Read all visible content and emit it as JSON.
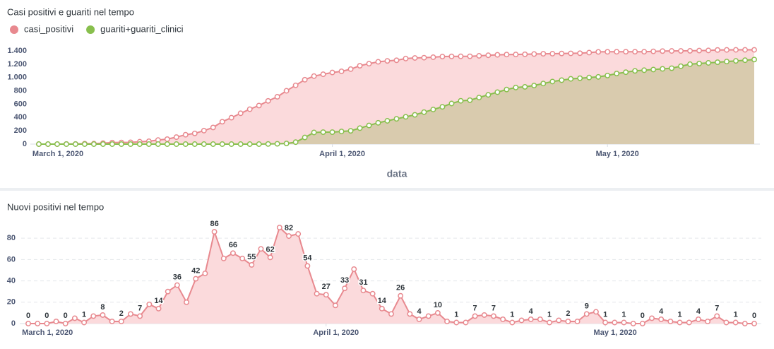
{
  "chart_data": [
    {
      "type": "area",
      "title": "Casi positivi e guariti nel tempo",
      "x_label": "data",
      "x": [
        "2020-02-29",
        "2020-03-01",
        "2020-03-02",
        "2020-03-03",
        "2020-03-04",
        "2020-03-05",
        "2020-03-06",
        "2020-03-07",
        "2020-03-08",
        "2020-03-09",
        "2020-03-10",
        "2020-03-11",
        "2020-03-12",
        "2020-03-13",
        "2020-03-14",
        "2020-03-15",
        "2020-03-16",
        "2020-03-17",
        "2020-03-18",
        "2020-03-19",
        "2020-03-20",
        "2020-03-21",
        "2020-03-22",
        "2020-03-23",
        "2020-03-24",
        "2020-03-25",
        "2020-03-26",
        "2020-03-27",
        "2020-03-28",
        "2020-03-29",
        "2020-03-30",
        "2020-03-31",
        "2020-04-01",
        "2020-04-02",
        "2020-04-03",
        "2020-04-04",
        "2020-04-05",
        "2020-04-06",
        "2020-04-07",
        "2020-04-08",
        "2020-04-09",
        "2020-04-10",
        "2020-04-11",
        "2020-04-12",
        "2020-04-13",
        "2020-04-14",
        "2020-04-15",
        "2020-04-16",
        "2020-04-17",
        "2020-04-18",
        "2020-04-19",
        "2020-04-20",
        "2020-04-21",
        "2020-04-22",
        "2020-04-23",
        "2020-04-24",
        "2020-04-25",
        "2020-04-26",
        "2020-04-27",
        "2020-04-28",
        "2020-04-29",
        "2020-04-30",
        "2020-05-01",
        "2020-05-02",
        "2020-05-03",
        "2020-05-04",
        "2020-05-05",
        "2020-05-06",
        "2020-05-07",
        "2020-05-08",
        "2020-05-09",
        "2020-05-10",
        "2020-05-11",
        "2020-05-12",
        "2020-05-13",
        "2020-05-14",
        "2020-05-15",
        "2020-05-16",
        "2020-05-17"
      ],
      "series": [
        {
          "name": "casi_positivi",
          "color": "#e8898f",
          "fill": "#fbdadc",
          "values": [
            0,
            0,
            0,
            2,
            2,
            7,
            8,
            15,
            23,
            25,
            27,
            36,
            43,
            61,
            75,
            105,
            141,
            161,
            203,
            250,
            336,
            397,
            463,
            524,
            579,
            649,
            711,
            801,
            883,
            967,
            1021,
            1049,
            1076,
            1093,
            1126,
            1177,
            1208,
            1236,
            1250,
            1259,
            1285,
            1294,
            1298,
            1305,
            1315,
            1317,
            1318,
            1319,
            1326,
            1334,
            1341,
            1345,
            1346,
            1349,
            1353,
            1357,
            1358,
            1361,
            1363,
            1365,
            1374,
            1385,
            1386,
            1387,
            1388,
            1388,
            1388,
            1393,
            1397,
            1399,
            1400,
            1401,
            1405,
            1407,
            1414,
            1415,
            1416,
            1416,
            1416
          ]
        },
        {
          "name": "guariti+guariti_clinici",
          "color": "#88bf4d",
          "fill": "rgba(140,170,70,0.3)",
          "values": [
            0,
            0,
            0,
            0,
            0,
            0,
            0,
            0,
            0,
            0,
            0,
            0,
            0,
            0,
            0,
            0,
            0,
            0,
            0,
            0,
            0,
            0,
            0,
            0,
            0,
            2,
            5,
            10,
            30,
            100,
            175,
            180,
            180,
            190,
            200,
            240,
            280,
            320,
            350,
            380,
            410,
            440,
            480,
            520,
            560,
            610,
            650,
            660,
            700,
            740,
            780,
            820,
            850,
            860,
            880,
            910,
            940,
            960,
            980,
            990,
            1000,
            1010,
            1030,
            1060,
            1080,
            1100,
            1110,
            1120,
            1130,
            1140,
            1170,
            1200,
            1210,
            1220,
            1230,
            1240,
            1250,
            1260,
            1270
          ]
        }
      ],
      "ylim": [
        0,
        1500
      ],
      "yticks": [
        0,
        200,
        400,
        600,
        800,
        {
          "value": 1000,
          "label": "1.000"
        },
        {
          "value": 1200,
          "label": "1.200"
        },
        {
          "value": 1400,
          "label": "1.400"
        }
      ],
      "xticks": [
        {
          "value": "2020-03-01",
          "label": "March 1, 2020"
        },
        {
          "value": "2020-04-01",
          "label": "April 1, 2020"
        },
        {
          "value": "2020-05-01",
          "label": "May 1, 2020"
        }
      ],
      "grid": false,
      "legend": "top-left"
    },
    {
      "type": "area",
      "title": "Nuovi positivi nel tempo",
      "x": [
        "2020-02-29",
        "2020-03-01",
        "2020-03-02",
        "2020-03-03",
        "2020-03-04",
        "2020-03-05",
        "2020-03-06",
        "2020-03-07",
        "2020-03-08",
        "2020-03-09",
        "2020-03-10",
        "2020-03-11",
        "2020-03-12",
        "2020-03-13",
        "2020-03-14",
        "2020-03-15",
        "2020-03-16",
        "2020-03-17",
        "2020-03-18",
        "2020-03-19",
        "2020-03-20",
        "2020-03-21",
        "2020-03-22",
        "2020-03-23",
        "2020-03-24",
        "2020-03-25",
        "2020-03-26",
        "2020-03-27",
        "2020-03-28",
        "2020-03-29",
        "2020-03-30",
        "2020-03-31",
        "2020-04-01",
        "2020-04-02",
        "2020-04-03",
        "2020-04-04",
        "2020-04-05",
        "2020-04-06",
        "2020-04-07",
        "2020-04-08",
        "2020-04-09",
        "2020-04-10",
        "2020-04-11",
        "2020-04-12",
        "2020-04-13",
        "2020-04-14",
        "2020-04-15",
        "2020-04-16",
        "2020-04-17",
        "2020-04-18",
        "2020-04-19",
        "2020-04-20",
        "2020-04-21",
        "2020-04-22",
        "2020-04-23",
        "2020-04-24",
        "2020-04-25",
        "2020-04-26",
        "2020-04-27",
        "2020-04-28",
        "2020-04-29",
        "2020-04-30",
        "2020-05-01",
        "2020-05-02",
        "2020-05-03",
        "2020-05-04",
        "2020-05-05",
        "2020-05-06",
        "2020-05-07",
        "2020-05-08",
        "2020-05-09",
        "2020-05-10",
        "2020-05-11",
        "2020-05-12",
        "2020-05-13",
        "2020-05-14",
        "2020-05-15",
        "2020-05-16",
        "2020-05-17"
      ],
      "values": [
        0,
        0,
        0,
        2,
        0,
        5,
        1,
        7,
        8,
        2,
        2,
        9,
        7,
        18,
        14,
        30,
        36,
        20,
        42,
        47,
        86,
        61,
        66,
        61,
        55,
        70,
        62,
        90,
        82,
        84,
        54,
        28,
        27,
        17,
        33,
        51,
        31,
        28,
        14,
        9,
        26,
        9,
        4,
        7,
        10,
        2,
        1,
        1,
        7,
        8,
        7,
        4,
        1,
        3,
        4,
        4,
        1,
        3,
        2,
        2,
        9,
        11,
        1,
        1,
        1,
        0,
        0,
        5,
        4,
        2,
        1,
        1,
        4,
        2,
        7,
        1,
        1,
        0,
        0
      ],
      "color": "#e8898f",
      "fill": "#fbdadc",
      "ylim": [
        0,
        95
      ],
      "yticks": [
        0,
        20,
        40,
        60,
        80
      ],
      "xticks": [
        {
          "value": "2020-03-01",
          "label": "March 1, 2020"
        },
        {
          "value": "2020-04-01",
          "label": "April 1, 2020"
        },
        {
          "value": "2020-05-01",
          "label": "May 1, 2020"
        }
      ],
      "grid": true
    }
  ]
}
